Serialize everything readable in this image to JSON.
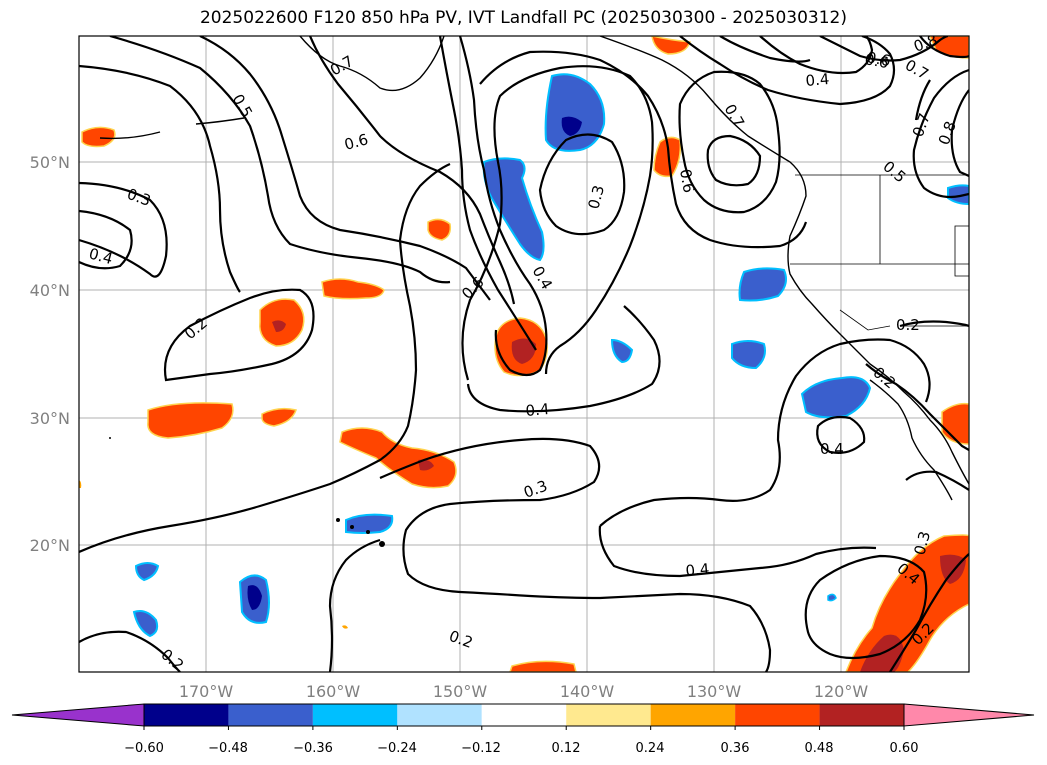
{
  "title": "2025022600 F120 850 hPa PV, IVT Landfall PC (2025030300 - 2025030312)",
  "lat_ticks": [
    "50°N",
    "40°N",
    "30°N",
    "20°N"
  ],
  "lon_ticks": [
    "170°W",
    "160°W",
    "150°W",
    "140°W",
    "130°W",
    "120°W"
  ],
  "contour_labels": [
    "0.5",
    "0.7",
    "0.6",
    "0.3",
    "0.4",
    "0.2",
    "0.6",
    "0.3",
    "0.4",
    "0.6",
    "0.7",
    "0.6",
    "0.4",
    "0.6",
    "0.7",
    "0.8",
    "0.7",
    "0.8",
    "0.5",
    "0.2",
    "0.2",
    "0.4",
    "0.4",
    "0.3",
    "0.4",
    "0.2",
    "0.2",
    "0.3",
    "0.4",
    "0.2"
  ],
  "colorbar": {
    "ticks": [
      "−0.60",
      "−0.48",
      "−0.36",
      "−0.24",
      "−0.12",
      "0.12",
      "0.24",
      "0.36",
      "0.48",
      "0.60"
    ],
    "colors": [
      "#9932cc",
      "#00008b",
      "#3a5fcd",
      "#00bfff",
      "#b0e2ff",
      "#ffffff",
      "#ffe98f",
      "#ffa500",
      "#ff4500",
      "#b22222",
      "#ff88aa"
    ]
  }
}
